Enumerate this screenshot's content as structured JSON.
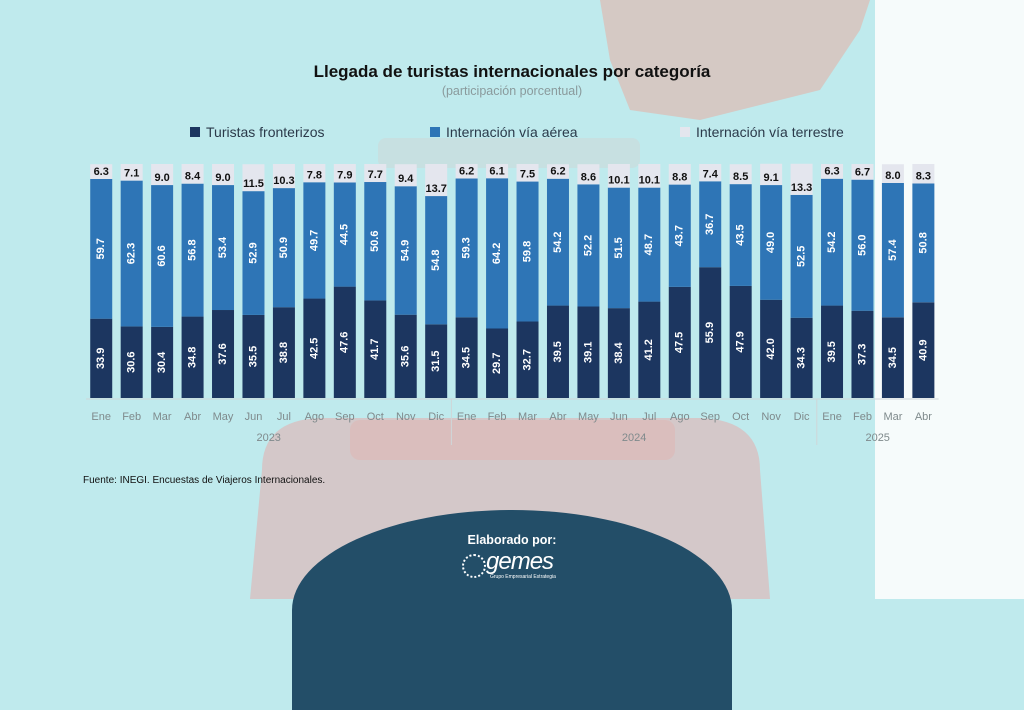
{
  "chart_data": {
    "type": "bar",
    "stacked": true,
    "percent": true,
    "title": "Llegada de turistas internacionales por categoría",
    "subtitle": "(participación porcentual)",
    "categories": [
      "Ene",
      "Feb",
      "Mar",
      "Abr",
      "May",
      "Jun",
      "Jul",
      "Ago",
      "Sep",
      "Oct",
      "Nov",
      "Dic",
      "Ene",
      "Feb",
      "Mar",
      "Abr",
      "May",
      "Jun",
      "Jul",
      "Ago",
      "Sep",
      "Oct",
      "Nov",
      "Dic",
      "Ene",
      "Feb",
      "Mar",
      "Abr"
    ],
    "year_groups": [
      {
        "label": "2023",
        "count": 12
      },
      {
        "label": "2024",
        "count": 12
      },
      {
        "label": "2025",
        "count": 4
      }
    ],
    "series": [
      {
        "name": "Turistas fronterizos",
        "color": "#1c3660",
        "values": [
          33.9,
          30.6,
          30.4,
          34.8,
          37.6,
          35.5,
          38.8,
          42.5,
          47.6,
          41.7,
          35.6,
          31.5,
          34.5,
          29.7,
          32.7,
          39.5,
          39.1,
          38.4,
          41.2,
          47.5,
          55.9,
          47.9,
          42.0,
          34.3,
          39.5,
          37.3,
          34.5,
          40.9
        ]
      },
      {
        "name": "Internación vía aérea",
        "color": "#2e75b6",
        "values": [
          59.7,
          62.3,
          60.6,
          56.8,
          53.4,
          52.9,
          50.9,
          49.7,
          44.5,
          50.6,
          54.9,
          54.8,
          59.3,
          64.2,
          59.8,
          54.2,
          52.2,
          51.5,
          48.7,
          43.7,
          36.7,
          43.5,
          49.0,
          52.5,
          54.2,
          56.0,
          57.4,
          50.8
        ]
      },
      {
        "name": "Internación vía terrestre",
        "color": "#e4e6ee",
        "values": [
          6.3,
          7.1,
          9.0,
          8.4,
          9.0,
          11.5,
          10.3,
          7.8,
          7.9,
          7.7,
          9.4,
          13.7,
          6.2,
          6.1,
          7.5,
          6.2,
          8.6,
          10.1,
          10.1,
          8.8,
          7.4,
          8.5,
          9.1,
          13.3,
          6.3,
          6.7,
          8.0,
          8.3
        ]
      }
    ],
    "ylim": [
      0,
      100
    ],
    "legend": "top",
    "grid": false
  },
  "source": "Fuente: INEGI. Encuestas de Viajeros Internacionales.",
  "footer": {
    "label": "Elaborado por:",
    "logo_text": "gemes",
    "logo_subtext": "Grupo Empresarial Estrategia"
  }
}
